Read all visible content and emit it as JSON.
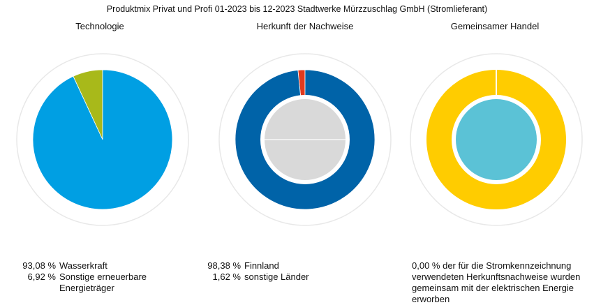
{
  "title": "Produktmix Privat und Profi 01-2023 bis 12-2023 Stadtwerke Mürzzuschlag GmbH (Stromlieferant)",
  "chart_data": [
    {
      "type": "pie",
      "title": "Technologie",
      "slices": [
        {
          "label": "Wasserkraft",
          "value": 93.08,
          "display": "93,08 %",
          "color": "#009FE3"
        },
        {
          "label": "Sonstige erneuerbare Energieträger",
          "display": "6,92 %",
          "value": 6.92,
          "color": "#A8B91A"
        }
      ]
    },
    {
      "type": "pie",
      "title": "Herkunft der Nachweise",
      "slices": [
        {
          "label": "Finnland",
          "value": 98.38,
          "display": "98,38 %",
          "color": "#0063A8"
        },
        {
          "label": "sonstige Länder",
          "value": 1.62,
          "display": "1,62 %",
          "color": "#E03A1E"
        }
      ],
      "inner_color": "#D9D9D9"
    },
    {
      "type": "pie",
      "title": "Gemeinsamer Handel",
      "slices": [
        {
          "label": "",
          "value": 100,
          "color": "#FFCC00"
        }
      ],
      "inner_color": "#5BC2D6",
      "note": "0,00 % der für die Stromkennzeichnung verwendeten Herkunftsnachweise wurden gemeinsam mit der elektrischen Energie erworben"
    }
  ]
}
